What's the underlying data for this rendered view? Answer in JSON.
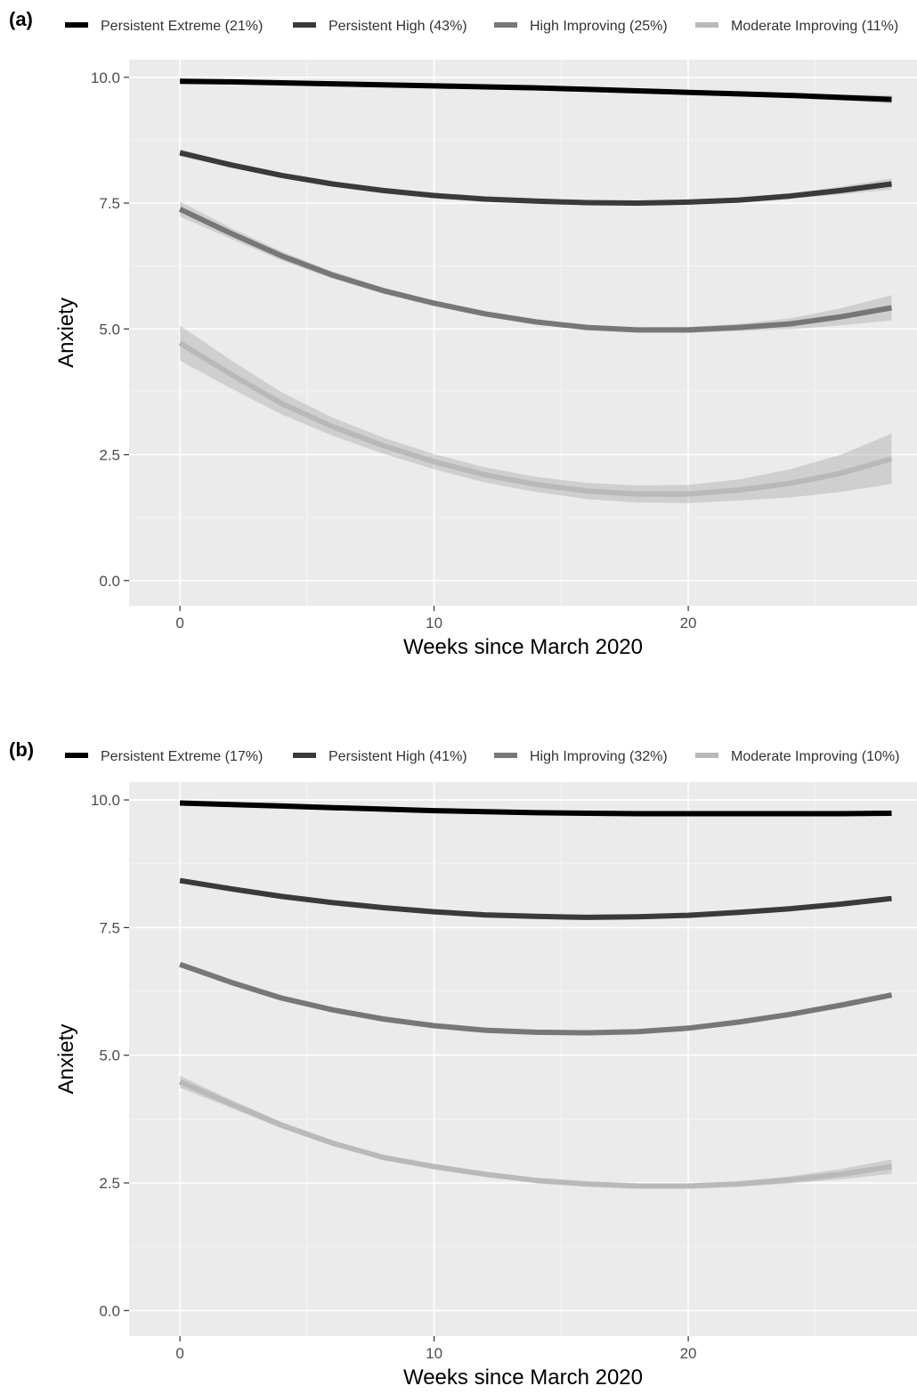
{
  "chart_data": [
    {
      "type": "line",
      "panel_label": "(a)",
      "xlabel": "Weeks since March 2020",
      "ylabel": "Anxiety",
      "xlim": [
        -2,
        29
      ],
      "ylim": [
        -0.5,
        10.35
      ],
      "x_ticks": [
        0,
        10,
        20
      ],
      "y_ticks": [
        0.0,
        2.5,
        5.0,
        7.5,
        10.0
      ],
      "y_tick_labels": [
        "0.0",
        "2.5",
        "5.0",
        "7.5",
        "10.0"
      ],
      "grid": true,
      "legend_position": "top",
      "x": [
        0,
        2,
        4,
        6,
        8,
        10,
        12,
        14,
        16,
        18,
        20,
        22,
        24,
        26,
        28
      ],
      "series": [
        {
          "name": "Persistent Extreme (21%)",
          "color": "#000000",
          "values": [
            9.92,
            9.91,
            9.89,
            9.87,
            9.85,
            9.83,
            9.81,
            9.79,
            9.76,
            9.73,
            9.7,
            9.67,
            9.64,
            9.6,
            9.56
          ],
          "ci_half_width": [
            0.03,
            0.03,
            0.03,
            0.03,
            0.03,
            0.03,
            0.03,
            0.03,
            0.03,
            0.03,
            0.04,
            0.04,
            0.05,
            0.06,
            0.08
          ]
        },
        {
          "name": "Persistent High (43%)",
          "color": "#3a3a3a",
          "values": [
            8.5,
            8.26,
            8.05,
            7.88,
            7.75,
            7.65,
            7.58,
            7.54,
            7.51,
            7.5,
            7.52,
            7.56,
            7.64,
            7.75,
            7.88
          ],
          "ci_half_width": [
            0.07,
            0.05,
            0.04,
            0.04,
            0.03,
            0.03,
            0.03,
            0.03,
            0.03,
            0.03,
            0.03,
            0.04,
            0.05,
            0.08,
            0.11
          ]
        },
        {
          "name": "High Improving (25%)",
          "color": "#777777",
          "values": [
            7.38,
            6.9,
            6.45,
            6.07,
            5.76,
            5.51,
            5.3,
            5.14,
            5.03,
            4.98,
            4.98,
            5.03,
            5.1,
            5.24,
            5.42
          ],
          "ci_half_width": [
            0.15,
            0.11,
            0.09,
            0.07,
            0.06,
            0.05,
            0.05,
            0.05,
            0.05,
            0.05,
            0.06,
            0.07,
            0.11,
            0.17,
            0.25
          ]
        },
        {
          "name": "Moderate Improving (11%)",
          "color": "#b9b9b9",
          "values": [
            4.72,
            4.1,
            3.52,
            3.06,
            2.68,
            2.36,
            2.1,
            1.91,
            1.78,
            1.72,
            1.72,
            1.8,
            1.93,
            2.13,
            2.42
          ],
          "ci_half_width": [
            0.35,
            0.28,
            0.22,
            0.18,
            0.16,
            0.15,
            0.15,
            0.15,
            0.16,
            0.17,
            0.18,
            0.21,
            0.28,
            0.37,
            0.5
          ]
        }
      ]
    },
    {
      "type": "line",
      "panel_label": "(b)",
      "xlabel": "Weeks since March 2020",
      "ylabel": "Anxiety",
      "xlim": [
        -2,
        29
      ],
      "ylim": [
        -0.5,
        10.35
      ],
      "x_ticks": [
        0,
        10,
        20
      ],
      "y_ticks": [
        0.0,
        2.5,
        5.0,
        7.5,
        10.0
      ],
      "y_tick_labels": [
        "0.0",
        "2.5",
        "5.0",
        "7.5",
        "10.0"
      ],
      "grid": true,
      "legend_position": "top",
      "x": [
        0,
        2,
        4,
        6,
        8,
        10,
        12,
        14,
        16,
        18,
        20,
        22,
        24,
        26,
        28
      ],
      "series": [
        {
          "name": "Persistent Extreme (17%)",
          "color": "#000000",
          "values": [
            9.94,
            9.91,
            9.88,
            9.85,
            9.82,
            9.79,
            9.77,
            9.75,
            9.74,
            9.73,
            9.73,
            9.73,
            9.73,
            9.73,
            9.74
          ],
          "ci_half_width": [
            0.02,
            0.02,
            0.02,
            0.02,
            0.02,
            0.02,
            0.02,
            0.02,
            0.02,
            0.02,
            0.02,
            0.02,
            0.02,
            0.02,
            0.03
          ]
        },
        {
          "name": "Persistent High (41%)",
          "color": "#3a3a3a",
          "values": [
            8.42,
            8.26,
            8.11,
            7.99,
            7.89,
            7.81,
            7.75,
            7.72,
            7.7,
            7.71,
            7.74,
            7.8,
            7.87,
            7.96,
            8.07
          ],
          "ci_half_width": [
            0.03,
            0.02,
            0.02,
            0.02,
            0.02,
            0.02,
            0.02,
            0.02,
            0.02,
            0.02,
            0.02,
            0.02,
            0.02,
            0.03,
            0.04
          ]
        },
        {
          "name": "High Improving (32%)",
          "color": "#777777",
          "values": [
            6.78,
            6.43,
            6.12,
            5.89,
            5.71,
            5.58,
            5.49,
            5.45,
            5.44,
            5.46,
            5.53,
            5.65,
            5.8,
            5.98,
            6.18
          ],
          "ci_half_width": [
            0.04,
            0.03,
            0.03,
            0.03,
            0.02,
            0.02,
            0.02,
            0.02,
            0.02,
            0.02,
            0.03,
            0.03,
            0.03,
            0.04,
            0.05
          ]
        },
        {
          "name": "Moderate Improving (10%)",
          "color": "#b9b9b9",
          "values": [
            4.48,
            4.05,
            3.63,
            3.28,
            3.0,
            2.82,
            2.67,
            2.55,
            2.48,
            2.44,
            2.44,
            2.48,
            2.56,
            2.67,
            2.82
          ],
          "ci_half_width": [
            0.12,
            0.08,
            0.06,
            0.05,
            0.04,
            0.04,
            0.04,
            0.04,
            0.04,
            0.04,
            0.05,
            0.05,
            0.07,
            0.1,
            0.14
          ]
        }
      ]
    }
  ]
}
